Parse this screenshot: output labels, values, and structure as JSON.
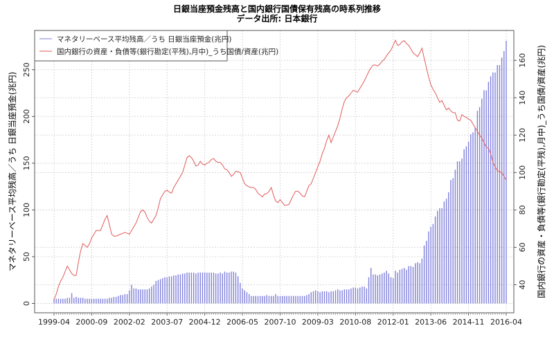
{
  "chart_data": {
    "type": "bar+line",
    "title": "日銀当座預金残高と国内銀行国債保有残高の時系列推移",
    "subtitle": "データ出所: 日本銀行",
    "x_range": [
      "1999-04",
      "2016-04"
    ],
    "frequency": "monthly",
    "x_ticks": [
      "1999-04",
      "2000-09",
      "2002-02",
      "2003-07",
      "2004-12",
      "2006-05",
      "2007-10",
      "2009-03",
      "2010-08",
      "2012-01",
      "2013-06",
      "2014-11",
      "2016-04"
    ],
    "y_left": {
      "label": "マネタリーベース平均残高／うち 日銀当座預金(兆円)",
      "ticks": [
        0,
        50,
        100,
        150,
        200,
        250
      ],
      "ylim": [
        -10,
        292
      ]
    },
    "y_right": {
      "label": "国内銀行の資産・負債等(銀行勘定(平残),月中)_うち国債/資産(兆円)",
      "ticks": [
        40,
        60,
        80,
        100,
        120,
        140,
        160
      ],
      "ylim": [
        25,
        176
      ]
    },
    "grid": true,
    "legend_position": "top-left",
    "series": [
      {
        "name": "マネタリーベース平均残高／うち 日銀当座預金(兆円)",
        "type": "bar",
        "axis": "left",
        "color": "#7f7fdc",
        "values": [
          5,
          5,
          5,
          5,
          5,
          5,
          6,
          6,
          11,
          6,
          7,
          6,
          6,
          6,
          5,
          5,
          5,
          5,
          5,
          5,
          5,
          5,
          5,
          5,
          5,
          6,
          6,
          7,
          7,
          8,
          9,
          9,
          10,
          10,
          14,
          20,
          16,
          16,
          15,
          15,
          15,
          15,
          15,
          16,
          18,
          20,
          24,
          25,
          26,
          27,
          28,
          28,
          29,
          29,
          30,
          30,
          31,
          31,
          32,
          32,
          33,
          33,
          33,
          33,
          32,
          33,
          33,
          33,
          33,
          33,
          33,
          33,
          33,
          32,
          32,
          33,
          32,
          34,
          33,
          33,
          34,
          34,
          33,
          29,
          22,
          16,
          14,
          12,
          10,
          8,
          8,
          8,
          8,
          8,
          8,
          8,
          9,
          8,
          8,
          8,
          10,
          8,
          8,
          8,
          8,
          8,
          8,
          8,
          8,
          8,
          8,
          8,
          8,
          8,
          9,
          10,
          12,
          13,
          14,
          13,
          12,
          13,
          13,
          13,
          12,
          13,
          13,
          14,
          15,
          14,
          14,
          15,
          15,
          15,
          16,
          17,
          17,
          16,
          17,
          18,
          18,
          16,
          28,
          38,
          31,
          31,
          30,
          31,
          32,
          33,
          35,
          32,
          28,
          27,
          35,
          33,
          36,
          37,
          38,
          36,
          40,
          40,
          39,
          43,
          44,
          43,
          48,
          62,
          67,
          77,
          82,
          85,
          93,
          99,
          102,
          102,
          109,
          112,
          119,
          132,
          134,
          143,
          152,
          152,
          155,
          165,
          168,
          173,
          181,
          183,
          188,
          206,
          210,
          219,
          228,
          228,
          237,
          243,
          247,
          247,
          255,
          255,
          263,
          270,
          281
        ]
      },
      {
        "name": "国内銀行の資産・負債等(銀行勘定(平残),月中)_うち国債/資産(兆円)",
        "type": "line",
        "axis": "right",
        "color": "#e05a5a",
        "values": [
          32,
          35,
          39,
          42,
          44,
          47,
          50,
          48,
          46,
          45,
          45,
          52,
          58,
          62,
          61,
          60,
          62,
          65,
          67,
          69,
          69,
          69,
          72,
          75,
          77,
          72,
          67,
          66,
          66,
          66.5,
          67,
          67.5,
          68,
          67.5,
          67,
          69,
          71,
          73,
          76,
          79,
          80,
          79,
          76,
          74,
          73,
          75,
          77,
          81,
          86,
          88,
          90,
          90.5,
          89.5,
          89,
          92,
          94,
          96,
          98,
          100,
          104,
          108,
          109,
          108,
          106,
          103.5,
          104,
          106,
          104.5,
          104,
          105,
          105.5,
          107,
          107.5,
          106,
          105.5,
          105.4,
          104,
          102,
          101.5,
          100,
          98,
          99,
          100.7,
          100.5,
          100,
          97,
          94,
          93,
          92.3,
          92,
          92,
          91,
          89,
          88,
          87,
          88.5,
          88.7,
          90,
          92,
          88,
          84.8,
          83.9,
          85.5,
          84,
          82.5,
          82.6,
          83,
          85.5,
          88,
          90,
          90,
          89,
          87.5,
          87,
          90,
          93,
          94,
          97,
          100,
          103,
          106,
          110,
          113,
          117,
          120,
          116,
          119,
          122,
          125,
          129,
          134,
          138,
          140,
          141,
          142.5,
          144,
          143.5,
          143,
          145,
          147,
          149,
          151.5,
          154,
          156,
          157.5,
          157.5,
          157,
          158,
          159.5,
          160.5,
          162.4,
          164,
          165.5,
          168,
          170.8,
          168,
          168.5,
          170,
          170.5,
          169,
          168,
          166,
          164,
          163,
          162,
          164,
          166.5,
          161,
          156,
          151,
          147,
          144.5,
          142.6,
          140,
          137.5,
          138.5,
          136,
          133.5,
          134.5,
          133,
          132,
          132,
          128,
          127.5,
          131,
          130,
          129.5,
          128.5,
          128,
          126,
          124,
          122,
          120,
          118.5,
          116,
          113.5,
          113,
          110,
          105.5,
          103,
          101,
          100.5,
          100,
          98,
          96
        ]
      }
    ]
  }
}
